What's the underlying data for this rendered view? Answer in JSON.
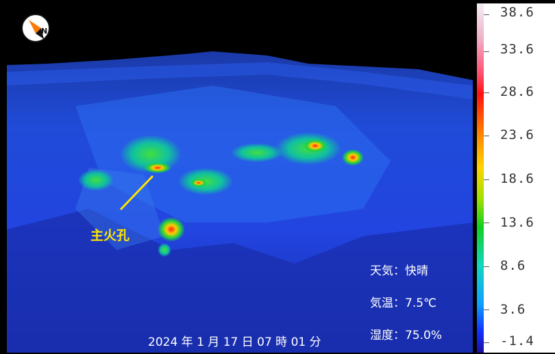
{
  "image": {
    "annotation": "主火孔",
    "compass_letter": "N",
    "timestamp": "2024 年 1 月 17 日 07 時 01 分",
    "weather": "天気：快晴",
    "temperature": "気温：7.5℃",
    "humidity": "湿度：75.0%"
  },
  "scale": {
    "unit": "°C",
    "labels": [
      "38.6",
      "33.6",
      "28.6",
      "23.6",
      "18.6",
      "13.6",
      "8.6",
      "3.6",
      "-1.4"
    ]
  },
  "colors": {
    "annotation": "#ffe600",
    "compass_orange": "#ff7a00",
    "terrain_blue": "#1a3cff"
  }
}
